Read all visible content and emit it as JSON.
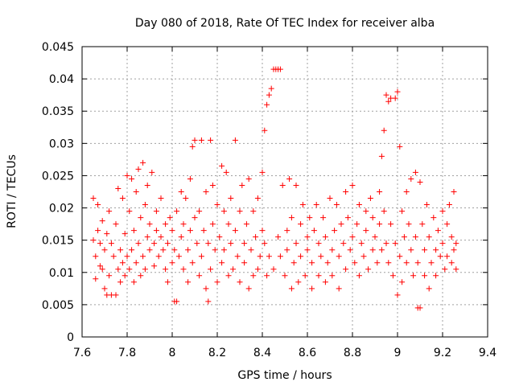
{
  "chart_data": {
    "type": "scatter",
    "title": "Day 080 of 2018, Rate Of TEC Index for receiver alba",
    "xlabel": "GPS time / hours",
    "ylabel": "ROTI / TECUs",
    "xlim": [
      7.6,
      9.4
    ],
    "ylim": [
      0,
      0.045
    ],
    "xticks": [
      7.6,
      7.8,
      8.0,
      8.2,
      8.4,
      8.6,
      8.8,
      9.0,
      9.2,
      9.4
    ],
    "xtick_labels": [
      "7.6",
      "7.8",
      "8",
      "8.2",
      "8.4",
      "8.6",
      "8.8",
      "9",
      "9.2",
      "9.4"
    ],
    "yticks": [
      0,
      0.005,
      0.01,
      0.015,
      0.02,
      0.025,
      0.03,
      0.035,
      0.04,
      0.045
    ],
    "ytick_labels": [
      "0",
      "0.005",
      "0.01",
      "0.015",
      "0.02",
      "0.025",
      "0.03",
      "0.035",
      "0.04",
      "0.045"
    ],
    "grid": true,
    "marker": "+",
    "marker_color": "#ff0000",
    "series": [
      {
        "name": "ROTI",
        "points": [
          [
            7.65,
            0.0215
          ],
          [
            7.65,
            0.015
          ],
          [
            7.66,
            0.0125
          ],
          [
            7.66,
            0.009
          ],
          [
            7.67,
            0.0165
          ],
          [
            7.67,
            0.0205
          ],
          [
            7.68,
            0.011
          ],
          [
            7.68,
            0.0145
          ],
          [
            7.69,
            0.018
          ],
          [
            7.69,
            0.0105
          ],
          [
            7.7,
            0.0075
          ],
          [
            7.7,
            0.0135
          ],
          [
            7.71,
            0.0065
          ],
          [
            7.71,
            0.016
          ],
          [
            7.72,
            0.0195
          ],
          [
            7.72,
            0.0095
          ],
          [
            7.73,
            0.0065
          ],
          [
            7.73,
            0.0145
          ],
          [
            7.74,
            0.0125
          ],
          [
            7.75,
            0.0065
          ],
          [
            7.75,
            0.0175
          ],
          [
            7.76,
            0.023
          ],
          [
            7.76,
            0.0105
          ],
          [
            7.77,
            0.0085
          ],
          [
            7.77,
            0.0135
          ],
          [
            7.78,
            0.0215
          ],
          [
            7.78,
            0.0115
          ],
          [
            7.79,
            0.0095
          ],
          [
            7.79,
            0.016
          ],
          [
            7.8,
            0.025
          ],
          [
            7.8,
            0.0125
          ],
          [
            7.81,
            0.0195
          ],
          [
            7.81,
            0.0105
          ],
          [
            7.82,
            0.0245
          ],
          [
            7.82,
            0.0135
          ],
          [
            7.83,
            0.0085
          ],
          [
            7.83,
            0.0165
          ],
          [
            7.84,
            0.0225
          ],
          [
            7.84,
            0.0115
          ],
          [
            7.85,
            0.026
          ],
          [
            7.85,
            0.0145
          ],
          [
            7.86,
            0.0095
          ],
          [
            7.86,
            0.0185
          ],
          [
            7.87,
            0.027
          ],
          [
            7.87,
            0.0125
          ],
          [
            7.88,
            0.0205
          ],
          [
            7.88,
            0.0105
          ],
          [
            7.89,
            0.0155
          ],
          [
            7.89,
            0.0235
          ],
          [
            7.9,
            0.0135
          ],
          [
            7.9,
            0.0175
          ],
          [
            7.91,
            0.0255
          ],
          [
            7.92,
            0.0145
          ],
          [
            7.92,
            0.011
          ],
          [
            7.93,
            0.0195
          ],
          [
            7.93,
            0.0165
          ],
          [
            7.94,
            0.0125
          ],
          [
            7.95,
            0.0215
          ],
          [
            7.95,
            0.0155
          ],
          [
            7.96,
            0.0135
          ],
          [
            7.97,
            0.0175
          ],
          [
            7.97,
            0.0105
          ],
          [
            7.98,
            0.0085
          ],
          [
            7.98,
            0.0145
          ],
          [
            7.99,
            0.0185
          ],
          [
            8.0,
            0.0115
          ],
          [
            8.0,
            0.0165
          ],
          [
            8.01,
            0.0055
          ],
          [
            8.01,
            0.0135
          ],
          [
            8.02,
            0.0055
          ],
          [
            8.02,
            0.0195
          ],
          [
            8.03,
            0.0125
          ],
          [
            8.04,
            0.0225
          ],
          [
            8.04,
            0.0155
          ],
          [
            8.05,
            0.0175
          ],
          [
            8.05,
            0.0105
          ],
          [
            8.06,
            0.0215
          ],
          [
            8.07,
            0.0135
          ],
          [
            8.07,
            0.0085
          ],
          [
            8.08,
            0.0245
          ],
          [
            8.08,
            0.0165
          ],
          [
            8.09,
            0.0295
          ],
          [
            8.09,
            0.0115
          ],
          [
            8.1,
            0.0185
          ],
          [
            8.1,
            0.0305
          ],
          [
            8.11,
            0.0145
          ],
          [
            8.12,
            0.0095
          ],
          [
            8.12,
            0.0195
          ],
          [
            8.13,
            0.0305
          ],
          [
            8.13,
            0.0125
          ],
          [
            8.14,
            0.0165
          ],
          [
            8.15,
            0.0075
          ],
          [
            8.15,
            0.0225
          ],
          [
            8.16,
            0.0055
          ],
          [
            8.16,
            0.0145
          ],
          [
            8.17,
            0.0305
          ],
          [
            8.17,
            0.0105
          ],
          [
            8.18,
            0.0235
          ],
          [
            8.18,
            0.0175
          ],
          [
            8.19,
            0.0135
          ],
          [
            8.2,
            0.0205
          ],
          [
            8.2,
            0.0085
          ],
          [
            8.21,
            0.0155
          ],
          [
            8.22,
            0.0265
          ],
          [
            8.22,
            0.0115
          ],
          [
            8.23,
            0.0195
          ],
          [
            8.23,
            0.0135
          ],
          [
            8.24,
            0.0255
          ],
          [
            8.25,
            0.0095
          ],
          [
            8.25,
            0.0175
          ],
          [
            8.26,
            0.0145
          ],
          [
            8.26,
            0.0215
          ],
          [
            8.27,
            0.0105
          ],
          [
            8.28,
            0.0305
          ],
          [
            8.28,
            0.0165
          ],
          [
            8.29,
            0.0125
          ],
          [
            8.3,
            0.0195
          ],
          [
            8.3,
            0.0085
          ],
          [
            8.31,
            0.0235
          ],
          [
            8.32,
            0.0145
          ],
          [
            8.32,
            0.0115
          ],
          [
            8.33,
            0.0175
          ],
          [
            8.34,
            0.0075
          ],
          [
            8.34,
            0.0245
          ],
          [
            8.35,
            0.0135
          ],
          [
            8.36,
            0.0095
          ],
          [
            8.36,
            0.0195
          ],
          [
            8.37,
            0.0155
          ],
          [
            8.38,
            0.0105
          ],
          [
            8.38,
            0.0215
          ],
          [
            8.39,
            0.0125
          ],
          [
            8.4,
            0.0255
          ],
          [
            8.4,
            0.0165
          ],
          [
            8.41,
            0.032
          ],
          [
            8.41,
            0.0145
          ],
          [
            8.42,
            0.036
          ],
          [
            8.42,
            0.0095
          ],
          [
            8.43,
            0.0375
          ],
          [
            8.43,
            0.0125
          ],
          [
            8.44,
            0.0385
          ],
          [
            8.45,
            0.0415
          ],
          [
            8.45,
            0.0105
          ],
          [
            8.46,
            0.0415
          ],
          [
            8.47,
            0.0415
          ],
          [
            8.47,
            0.0155
          ],
          [
            8.48,
            0.0415
          ],
          [
            8.48,
            0.0125
          ],
          [
            8.49,
            0.0235
          ],
          [
            8.5,
            0.0095
          ],
          [
            8.51,
            0.0165
          ],
          [
            8.51,
            0.0135
          ],
          [
            8.52,
            0.0245
          ],
          [
            8.53,
            0.0075
          ],
          [
            8.53,
            0.0185
          ],
          [
            8.54,
            0.0115
          ],
          [
            8.55,
            0.0145
          ],
          [
            8.55,
            0.0235
          ],
          [
            8.56,
            0.0085
          ],
          [
            8.57,
            0.0175
          ],
          [
            8.57,
            0.0125
          ],
          [
            8.58,
            0.0205
          ],
          [
            8.59,
            0.0095
          ],
          [
            8.6,
            0.0155
          ],
          [
            8.6,
            0.0135
          ],
          [
            8.61,
            0.0185
          ],
          [
            8.62,
            0.0075
          ],
          [
            8.62,
            0.0115
          ],
          [
            8.63,
            0.0165
          ],
          [
            8.64,
            0.0205
          ],
          [
            8.65,
            0.0095
          ],
          [
            8.65,
            0.0145
          ],
          [
            8.66,
            0.0125
          ],
          [
            8.67,
            0.0185
          ],
          [
            8.68,
            0.0085
          ],
          [
            8.68,
            0.0155
          ],
          [
            8.69,
            0.0115
          ],
          [
            8.7,
            0.0215
          ],
          [
            8.71,
            0.0135
          ],
          [
            8.71,
            0.0095
          ],
          [
            8.72,
            0.0165
          ],
          [
            8.73,
            0.0205
          ],
          [
            8.74,
            0.0125
          ],
          [
            8.74,
            0.0075
          ],
          [
            8.75,
            0.0175
          ],
          [
            8.76,
            0.0145
          ],
          [
            8.77,
            0.0225
          ],
          [
            8.77,
            0.0105
          ],
          [
            8.78,
            0.0185
          ],
          [
            8.79,
            0.0135
          ],
          [
            8.8,
            0.0155
          ],
          [
            8.8,
            0.0235
          ],
          [
            8.81,
            0.0115
          ],
          [
            8.82,
            0.0175
          ],
          [
            8.83,
            0.0095
          ],
          [
            8.83,
            0.0205
          ],
          [
            8.84,
            0.0145
          ],
          [
            8.85,
            0.0125
          ],
          [
            8.86,
            0.0195
          ],
          [
            8.86,
            0.0165
          ],
          [
            8.87,
            0.0105
          ],
          [
            8.88,
            0.0215
          ],
          [
            8.89,
            0.0135
          ],
          [
            8.89,
            0.0185
          ],
          [
            8.9,
            0.0155
          ],
          [
            8.91,
            0.0115
          ],
          [
            8.92,
            0.0225
          ],
          [
            8.92,
            0.0175
          ],
          [
            8.93,
            0.0135
          ],
          [
            8.93,
            0.028
          ],
          [
            8.94,
            0.0195
          ],
          [
            8.94,
            0.032
          ],
          [
            8.95,
            0.0145
          ],
          [
            8.95,
            0.0375
          ],
          [
            8.96,
            0.0365
          ],
          [
            8.96,
            0.0115
          ],
          [
            8.97,
            0.037
          ],
          [
            8.97,
            0.0175
          ],
          [
            8.98,
            0.0095
          ],
          [
            8.99,
            0.037
          ],
          [
            8.99,
            0.0145
          ],
          [
            9.0,
            0.038
          ],
          [
            9.0,
            0.0065
          ],
          [
            9.01,
            0.0295
          ],
          [
            9.01,
            0.0125
          ],
          [
            9.02,
            0.0085
          ],
          [
            9.02,
            0.0195
          ],
          [
            9.03,
            0.0155
          ],
          [
            9.04,
            0.0225
          ],
          [
            9.04,
            0.0115
          ],
          [
            9.05,
            0.0175
          ],
          [
            9.06,
            0.0245
          ],
          [
            9.06,
            0.0135
          ],
          [
            9.07,
            0.0095
          ],
          [
            9.08,
            0.0255
          ],
          [
            9.08,
            0.0155
          ],
          [
            9.09,
            0.0045
          ],
          [
            9.09,
            0.0115
          ],
          [
            9.1,
            0.0045
          ],
          [
            9.1,
            0.024
          ],
          [
            9.11,
            0.0175
          ],
          [
            9.12,
            0.0135
          ],
          [
            9.12,
            0.0095
          ],
          [
            9.13,
            0.0205
          ],
          [
            9.14,
            0.0075
          ],
          [
            9.14,
            0.0155
          ],
          [
            9.15,
            0.0115
          ],
          [
            9.16,
            0.0185
          ],
          [
            9.17,
            0.0135
          ],
          [
            9.17,
            0.0095
          ],
          [
            9.18,
            0.0165
          ],
          [
            9.19,
            0.0125
          ],
          [
            9.2,
            0.0195
          ],
          [
            9.2,
            0.0145
          ],
          [
            9.21,
            0.0105
          ],
          [
            9.22,
            0.0175
          ],
          [
            9.22,
            0.0125
          ],
          [
            9.23,
            0.0205
          ],
          [
            9.24,
            0.0155
          ],
          [
            9.24,
            0.0115
          ],
          [
            9.25,
            0.0225
          ],
          [
            9.25,
            0.0135
          ],
          [
            9.26,
            0.0145
          ],
          [
            9.26,
            0.0105
          ]
        ]
      }
    ]
  }
}
